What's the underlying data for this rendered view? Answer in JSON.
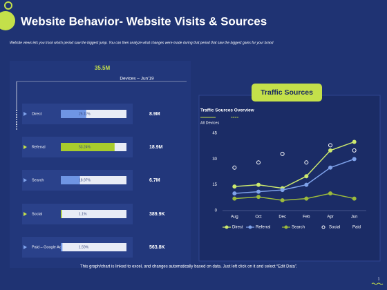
{
  "header": {
    "title": "Website Behavior- Website Visits & Sources",
    "subtitle": "Website views lets you track which period saw the biggest jump.  You can then analyze what changes were made  during that period that saw the biggest gains for your brand"
  },
  "devices": {
    "total": "35.5M",
    "label": "Devices – Jun'19",
    "rows": [
      {
        "name": "Direct",
        "share": 25.11,
        "share_label": "25.11%",
        "value": "8.9M",
        "highlight": false
      },
      {
        "name": "Referral",
        "share": 53.24,
        "share_label": "53.24%",
        "value": "18.9M",
        "highlight": true
      },
      {
        "name": "Search",
        "share": 18.97,
        "share_label": "18.97%",
        "value": "6.7M",
        "highlight": false
      },
      {
        "name": "Social",
        "share": 1.1,
        "share_label": "1.1%",
        "value": "389.9K",
        "highlight": true
      },
      {
        "name": "Paid – Google Ads",
        "share": 1.59,
        "share_label": "1.59%",
        "value": "563.8K",
        "highlight": false
      }
    ]
  },
  "panel": {
    "button": "Traffic Sources",
    "heading": "Traffic Sources Overview",
    "filter": "All Devices"
  },
  "chart_data": {
    "type": "line",
    "categories": [
      "Aug",
      "Oct",
      "Dec",
      "Feb",
      "Apr",
      "Jun"
    ],
    "ylim": [
      0,
      45
    ],
    "yticks": [
      0,
      15,
      30,
      45
    ],
    "series": [
      {
        "name": "Direct",
        "color": "#cdea6e",
        "line": true,
        "values": [
          14,
          15,
          13,
          20,
          35,
          40
        ]
      },
      {
        "name": "Referral",
        "color": "#7fa2ea",
        "line": true,
        "values": [
          10,
          11,
          12,
          15,
          25,
          30
        ]
      },
      {
        "name": "Search",
        "color": "#9cba3c",
        "line": true,
        "values": [
          7,
          8,
          6,
          7,
          10,
          7
        ]
      },
      {
        "name": "Social",
        "color": "#ffffff",
        "line": false,
        "values": [
          25,
          28,
          33,
          28,
          38,
          35
        ]
      },
      {
        "name": "Paid",
        "values": [
          null,
          null,
          null,
          null,
          null,
          null
        ]
      }
    ]
  },
  "footer": {
    "note": "This graph/chart is linked to excel, and changes automatically based on data. Just left click on it and select “Edit Data”.",
    "page": "1"
  }
}
